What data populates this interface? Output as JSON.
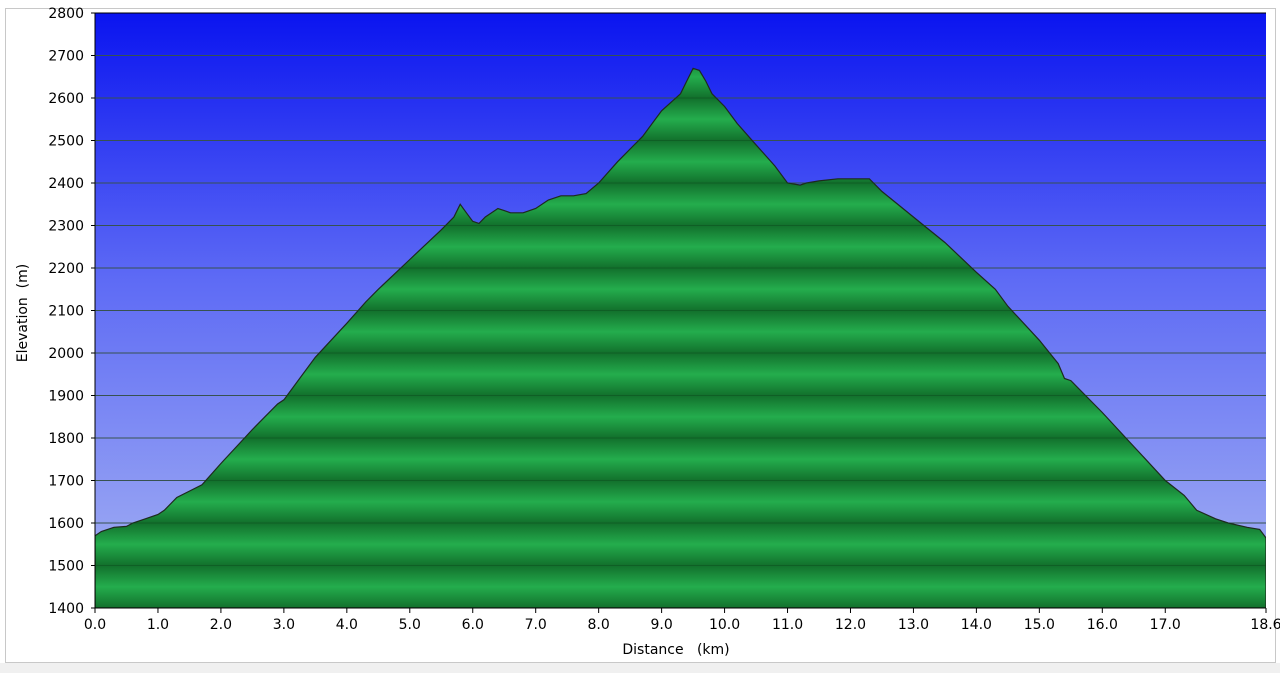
{
  "chart_data": {
    "type": "area",
    "title": "",
    "xlabel": "Distance   (km)",
    "ylabel": "Elevation  (m)",
    "xlim": [
      0,
      18.6
    ],
    "ylim": [
      1400,
      2800
    ],
    "x_ticks": [
      0,
      1,
      2,
      3,
      4,
      5,
      6,
      7,
      8,
      9,
      10,
      11,
      12,
      13,
      14,
      15,
      16,
      17,
      18.6
    ],
    "x_tick_labels": [
      "0.0",
      "1.0",
      "2.0",
      "3.0",
      "4.0",
      "5.0",
      "6.0",
      "7.0",
      "8.0",
      "9.0",
      "10.0",
      "11.0",
      "12.0",
      "13.0",
      "14.0",
      "15.0",
      "16.0",
      "17.0",
      "18.6"
    ],
    "y_ticks": [
      1400,
      1500,
      1600,
      1700,
      1800,
      1900,
      2000,
      2100,
      2200,
      2300,
      2400,
      2500,
      2600,
      2700,
      2800
    ],
    "y_tick_labels": [
      "1400",
      "1500",
      "1600",
      "1700",
      "1800",
      "1900",
      "2000",
      "2100",
      "2200",
      "2300",
      "2400",
      "2500",
      "2600",
      "2700",
      "2800"
    ],
    "grid": true,
    "legend": "none",
    "series": [
      {
        "x": [
          0.0,
          0.1,
          0.3,
          0.5,
          0.6,
          0.8,
          1.0,
          1.1,
          1.3,
          1.5,
          1.7,
          2.0,
          2.5,
          2.9,
          3.0,
          3.5,
          4.0,
          4.3,
          4.5,
          5.0,
          5.5,
          5.7,
          5.8,
          5.9,
          6.0,
          6.1,
          6.2,
          6.3,
          6.4,
          6.5,
          6.6,
          6.8,
          7.0,
          7.2,
          7.4,
          7.6,
          7.8,
          8.0,
          8.3,
          8.7,
          9.0,
          9.3,
          9.4,
          9.5,
          9.6,
          9.7,
          9.8,
          10.0,
          10.2,
          10.5,
          10.8,
          11.0,
          11.2,
          11.3,
          11.5,
          11.8,
          12.0,
          12.3,
          12.5,
          13.0,
          13.5,
          14.0,
          14.3,
          14.5,
          15.0,
          15.3,
          15.4,
          15.5,
          16.0,
          16.5,
          17.0,
          17.3,
          17.5,
          17.8,
          18.0,
          18.3,
          18.5,
          18.6
        ],
        "y": [
          1570,
          1580,
          1590,
          1592,
          1600,
          1610,
          1620,
          1630,
          1660,
          1675,
          1690,
          1740,
          1820,
          1880,
          1890,
          1990,
          2070,
          2120,
          2150,
          2220,
          2290,
          2320,
          2350,
          2330,
          2310,
          2305,
          2320,
          2330,
          2340,
          2335,
          2330,
          2330,
          2340,
          2360,
          2370,
          2370,
          2375,
          2400,
          2450,
          2510,
          2570,
          2610,
          2640,
          2670,
          2665,
          2640,
          2610,
          2580,
          2540,
          2490,
          2440,
          2400,
          2395,
          2400,
          2405,
          2410,
          2410,
          2410,
          2380,
          2320,
          2260,
          2190,
          2150,
          2110,
          2030,
          1975,
          1940,
          1935,
          1860,
          1780,
          1700,
          1665,
          1630,
          1610,
          1600,
          1590,
          1585,
          1565
        ]
      }
    ],
    "colors": {
      "sky_top": "#0a14f0",
      "sky_mid": "#5e6bf5",
      "sky_bottom": "#a6b3f2",
      "terrain_light": "#24ad4d",
      "terrain_dark": "#12702c",
      "outline": "#1e2a1e",
      "gridline": "#5a5a7a",
      "axis": "#000000"
    }
  }
}
